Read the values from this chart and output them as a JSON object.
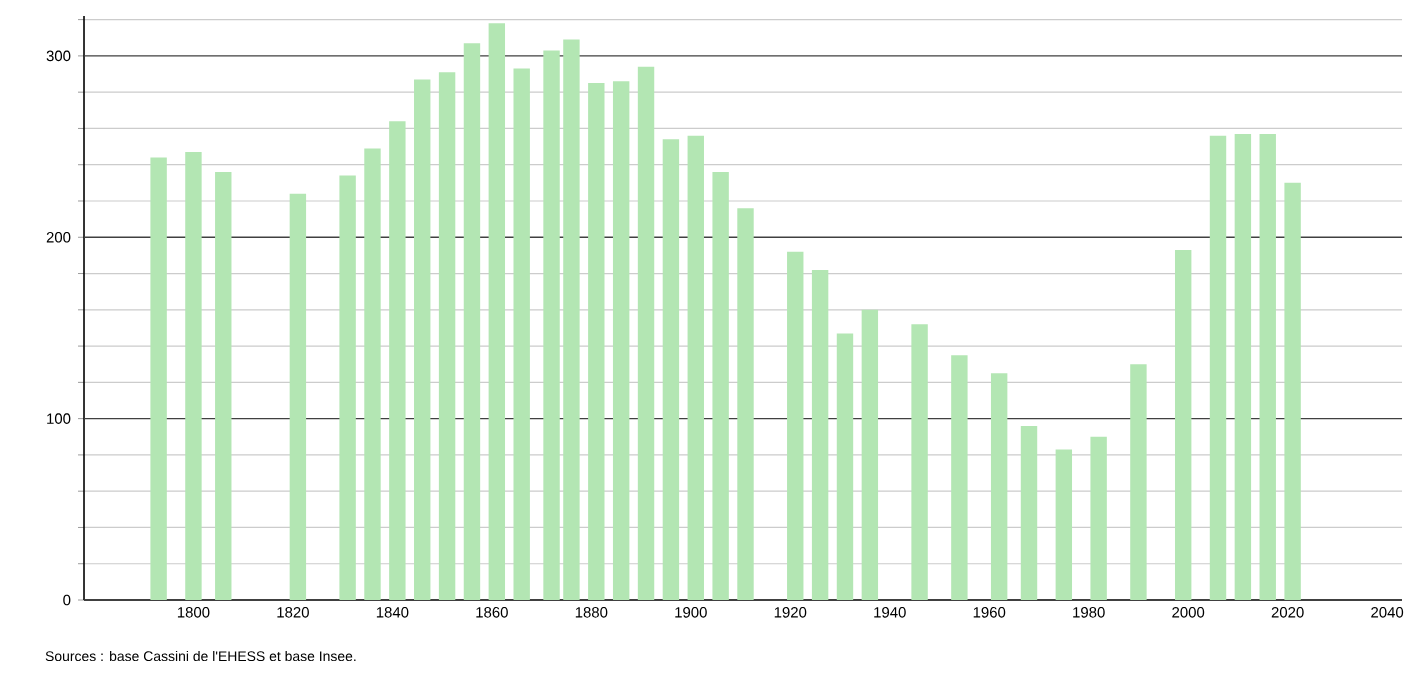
{
  "chart_data": {
    "type": "bar",
    "x": [
      1793,
      1800,
      1806,
      1821,
      1831,
      1836,
      1841,
      1846,
      1851,
      1856,
      1861,
      1866,
      1872,
      1876,
      1881,
      1886,
      1891,
      1896,
      1901,
      1906,
      1911,
      1921,
      1926,
      1931,
      1936,
      1946,
      1954,
      1962,
      1968,
      1975,
      1982,
      1990,
      1999,
      2006,
      2011,
      2016,
      2021
    ],
    "values": [
      244,
      247,
      236,
      224,
      234,
      249,
      264,
      287,
      291,
      307,
      318,
      293,
      303,
      309,
      285,
      286,
      294,
      254,
      256,
      236,
      216,
      192,
      182,
      147,
      160,
      152,
      135,
      125,
      96,
      83,
      90,
      130,
      193,
      256,
      257,
      257,
      230
    ],
    "color": "#b3e6b3",
    "xlim": [
      1778,
      2043
    ],
    "ylim": [
      0,
      322
    ],
    "xticks": [
      1800,
      1820,
      1840,
      1860,
      1880,
      1900,
      1920,
      1940,
      1960,
      1980,
      2000,
      2020,
      2040
    ],
    "yticks": [
      0,
      {
        "value": 20,
        "label": null
      },
      {
        "value": 40,
        "label": null
      },
      {
        "value": 60,
        "label": null
      },
      {
        "value": 80,
        "label": null
      },
      100,
      {
        "value": 120,
        "label": null
      },
      {
        "value": 140,
        "label": null
      },
      {
        "value": 160,
        "label": null
      },
      {
        "value": 180,
        "label": null
      },
      200,
      {
        "value": 220,
        "label": null
      },
      {
        "value": 240,
        "label": null
      },
      {
        "value": 260,
        "label": null
      },
      {
        "value": 280,
        "label": null
      },
      300,
      {
        "value": 320,
        "label": null
      }
    ],
    "grid": "y",
    "annotations": [
      "Sources : base Cassini de l'EHESS et base Insee."
    ]
  }
}
